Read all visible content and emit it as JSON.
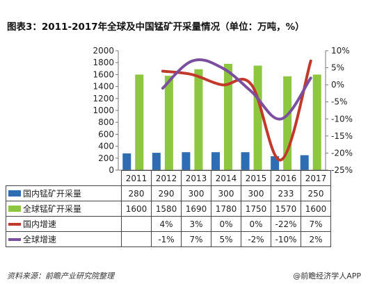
{
  "chart_data": {
    "type": "bar",
    "title": "图表3：2011-2017年全球及中国锰矿开采量情况（单位：万吨，%）",
    "categories": [
      "2011",
      "2012",
      "2013",
      "2014",
      "2015",
      "2016",
      "2017"
    ],
    "series": [
      {
        "name": "国内锰矿开采量",
        "type": "bar",
        "axis": "left",
        "color": "#2e6db4",
        "values": [
          280,
          290,
          300,
          300,
          300,
          233,
          250
        ]
      },
      {
        "name": "全球锰矿开采量",
        "type": "bar",
        "axis": "left",
        "color": "#8dc63f",
        "values": [
          1600,
          1580,
          1690,
          1780,
          1750,
          1570,
          1600
        ]
      },
      {
        "name": "国内增速",
        "type": "line",
        "axis": "right",
        "color": "#c0392b",
        "values": [
          null,
          4,
          3,
          0,
          0,
          -22,
          7
        ]
      },
      {
        "name": "全球增速",
        "type": "line",
        "axis": "right",
        "color": "#7b4fa0",
        "values": [
          null,
          -1,
          7,
          5,
          -2,
          -10,
          2
        ]
      }
    ],
    "y_left": {
      "min": 0,
      "max": 2000,
      "ticks": [
        0,
        200,
        400,
        600,
        800,
        1000,
        1200,
        1400,
        1600,
        1800,
        2000
      ]
    },
    "y_right": {
      "min": -25,
      "max": 10,
      "ticks": [
        "10%",
        "5%",
        "0%",
        "-5%",
        "-10%",
        "-15%",
        "-20%",
        "-25%"
      ]
    },
    "grid": false,
    "legend": "table-below"
  },
  "table": {
    "rows": [
      {
        "label": "国内锰矿开采量",
        "key": "bar-blue",
        "cells": [
          "280",
          "290",
          "300",
          "300",
          "300",
          "233",
          "250"
        ]
      },
      {
        "label": "全球锰矿开采量",
        "key": "bar-green",
        "cells": [
          "1600",
          "1580",
          "1690",
          "1780",
          "1750",
          "1570",
          "1600"
        ]
      },
      {
        "label": "国内增速",
        "key": "line-red",
        "cells": [
          "",
          "4%",
          "3%",
          "0%",
          "0%",
          "-22%",
          "7%"
        ]
      },
      {
        "label": "全球增速",
        "key": "line-purple",
        "cells": [
          "",
          "-1%",
          "7%",
          "5%",
          "-2%",
          "-10%",
          "2%"
        ]
      }
    ]
  },
  "footer": {
    "source": "资料来源：前瞻产业研究院整理",
    "credit": "@前瞻经济学人APP"
  }
}
